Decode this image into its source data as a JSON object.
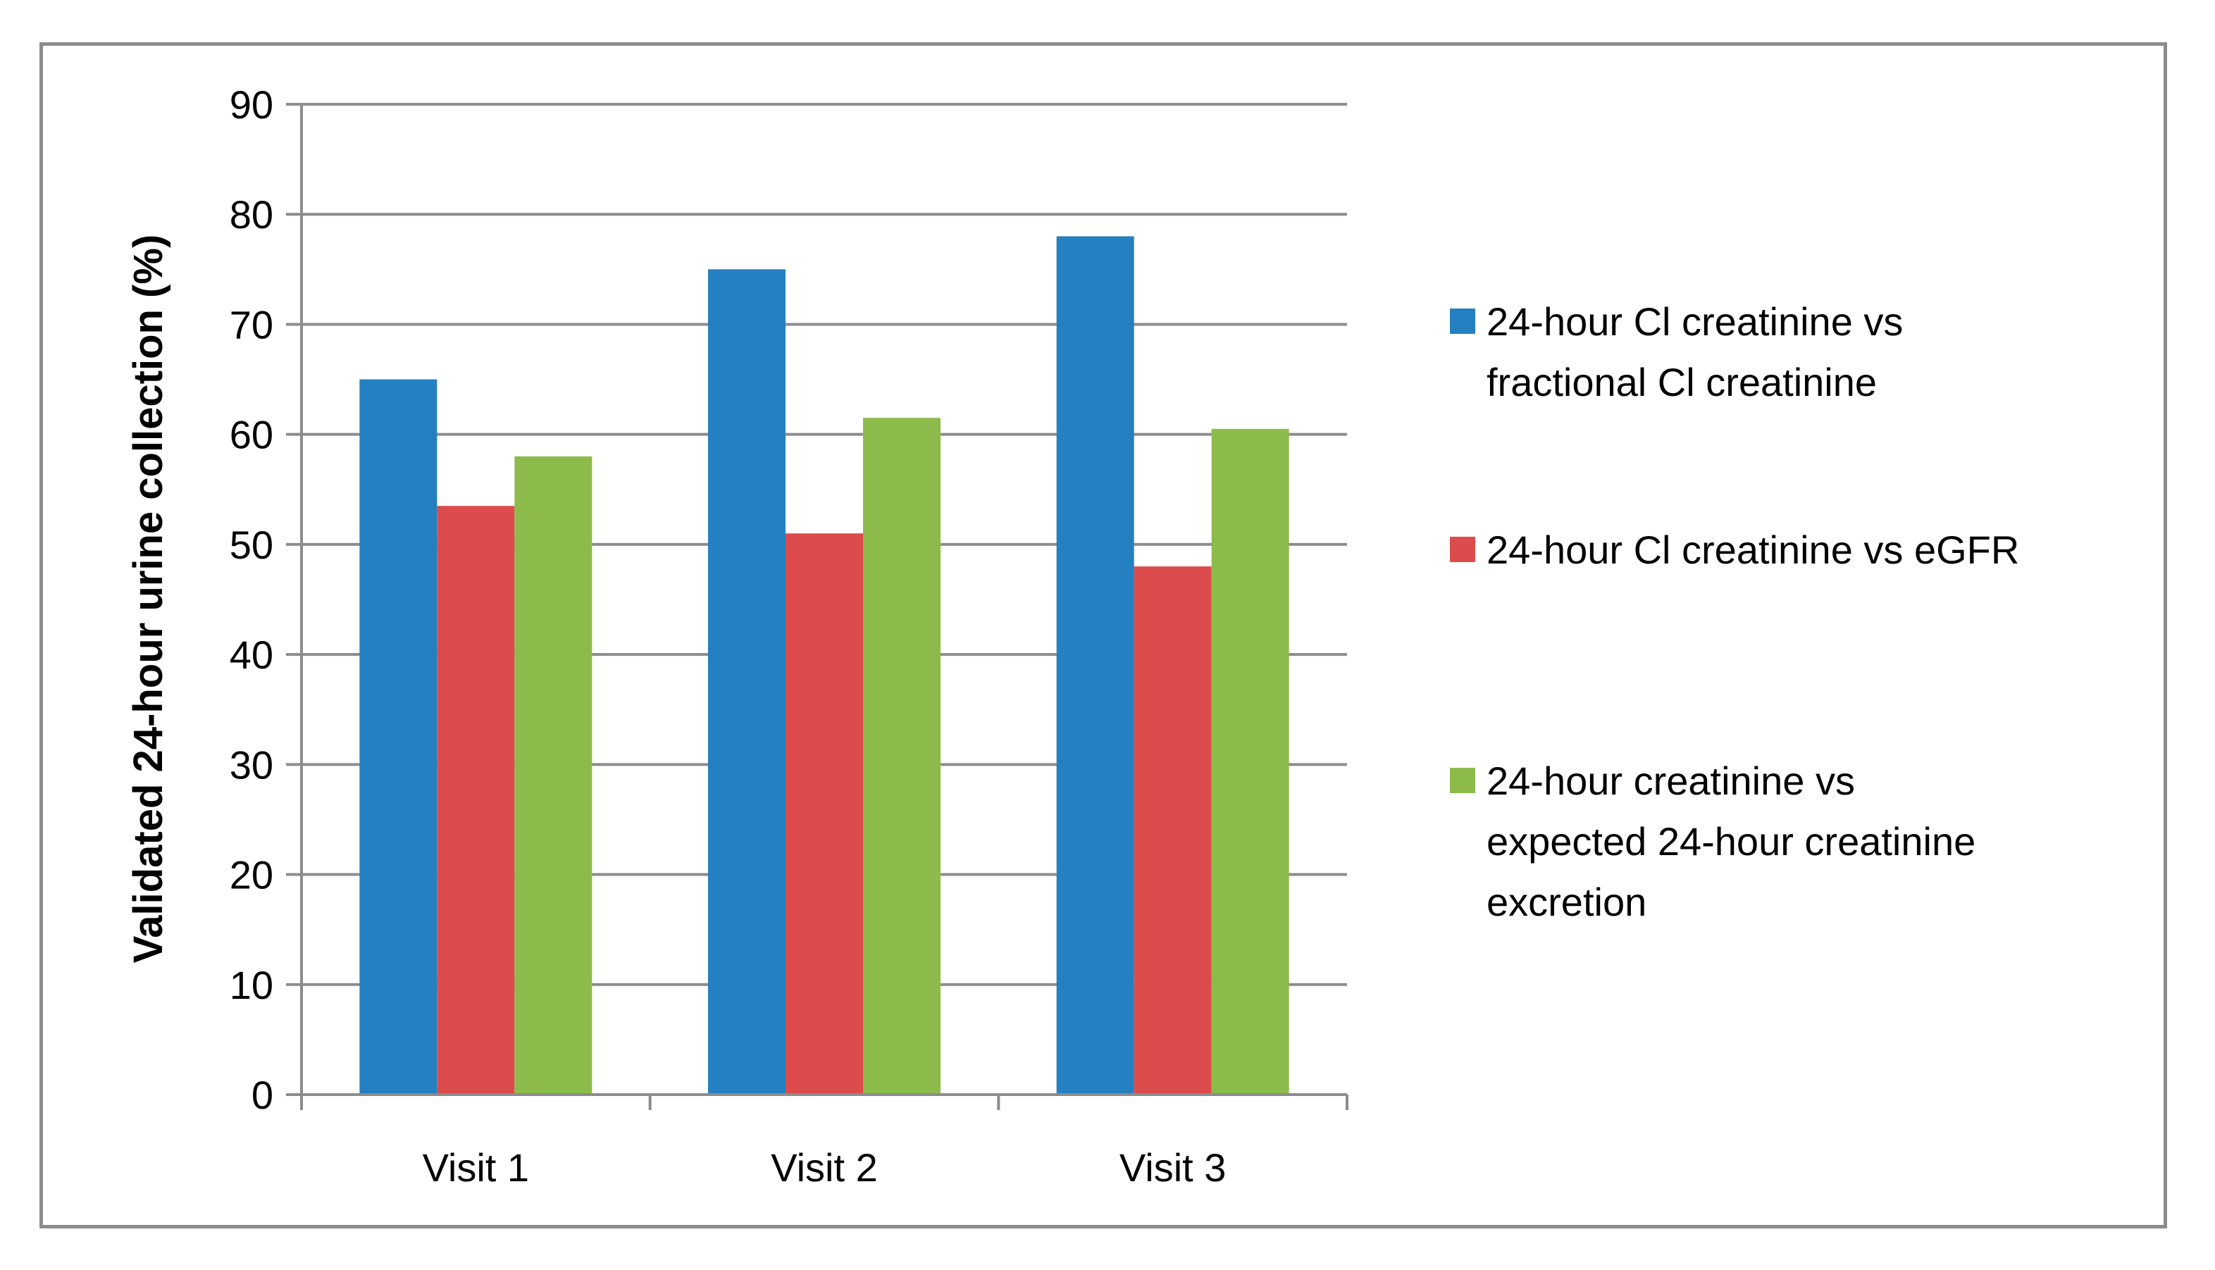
{
  "chart_data": {
    "type": "bar",
    "title": "",
    "xlabel": "",
    "ylabel": "Validated 24-hour urine collection (%)",
    "ylim": [
      0,
      90
    ],
    "yticks": [
      0,
      10,
      20,
      30,
      40,
      50,
      60,
      70,
      80,
      90
    ],
    "grid": true,
    "legend_position": "right",
    "categories": [
      "Visit 1",
      "Visit 2",
      "Visit 3"
    ],
    "series": [
      {
        "name": "24-hour Cl creatinine vs fractional Cl creatinine",
        "legend_lines": [
          "24-hour Cl creatinine vs",
          "fractional Cl creatinine"
        ],
        "color": "#2480c1",
        "values": [
          65,
          75,
          78
        ]
      },
      {
        "name": "24-hour Cl creatinine vs eGFR",
        "legend_lines": [
          "24-hour Cl creatinine vs eGFR"
        ],
        "color": "#dc4c4c",
        "values": [
          53.5,
          51,
          48
        ]
      },
      {
        "name": "24-hour creatinine vs expected 24-hour creatinine excretion",
        "legend_lines": [
          "24-hour creatinine vs",
          "expected 24-hour creatinine",
          "excretion"
        ],
        "color": "#8cbb4c",
        "values": [
          58,
          61.5,
          60.5
        ]
      }
    ]
  }
}
